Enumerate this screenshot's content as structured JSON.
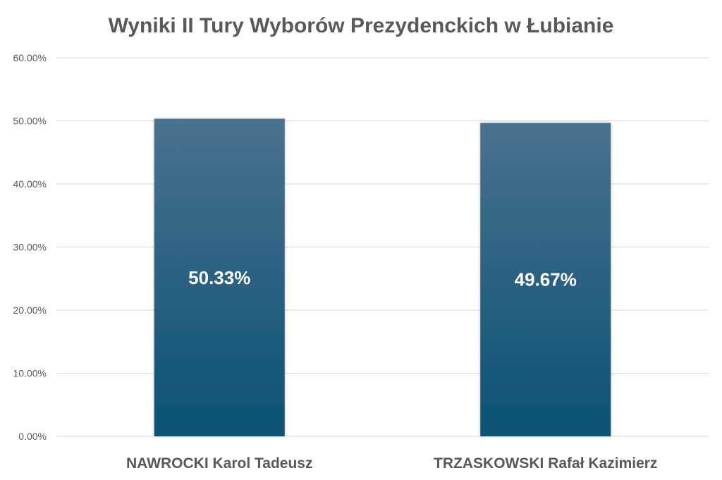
{
  "chart_data": {
    "type": "bar",
    "title": "Wyniki II Tury Wyborów Prezydenckich w Łubianie",
    "xlabel": "",
    "ylabel": "",
    "categories": [
      "NAWROCKI Karol Tadeusz",
      "TRZASKOWSKI Rafał Kazimierz"
    ],
    "values": [
      50.33,
      49.67
    ],
    "data_labels": [
      "50.33%",
      "49.67%"
    ],
    "ylim": [
      0,
      60
    ],
    "y_ticks": [
      0,
      10,
      20,
      30,
      40,
      50,
      60
    ],
    "y_tick_labels": [
      "0.00%",
      "10.00%",
      "20.00%",
      "30.00%",
      "40.00%",
      "50.00%",
      "60.00%"
    ],
    "grid": true,
    "legend": "none",
    "colors": {
      "bar_top": "#4a7190",
      "bar_bottom": "#0b5273",
      "text": "#595959",
      "gridline": "#d9d9d9"
    }
  }
}
